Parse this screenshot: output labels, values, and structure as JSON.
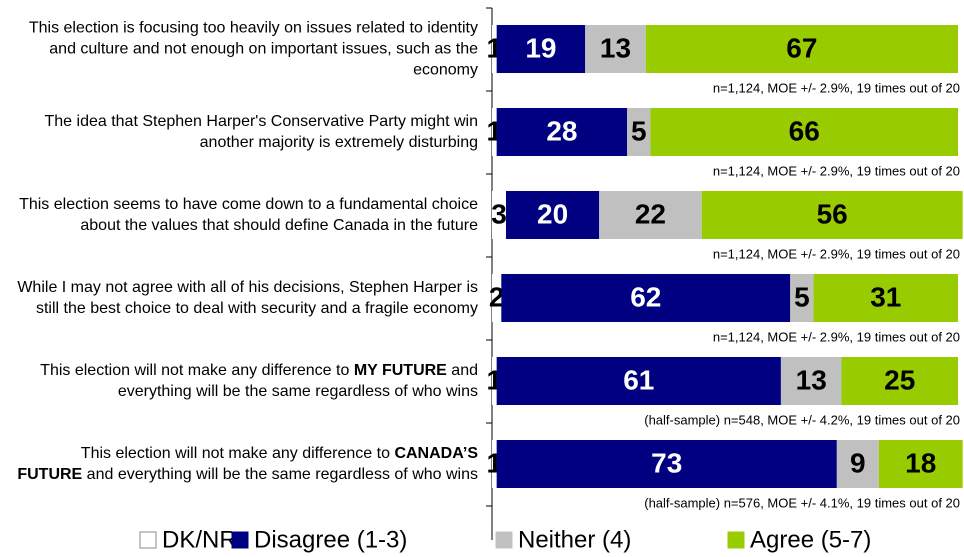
{
  "chart_data": {
    "type": "stacked-bar-horizontal",
    "categories": [
      [
        "This election is focusing too heavily on issues related to identity and culture and not enough on important issues, such as the economy"
      ],
      [
        "The idea that Stephen Harper's Conservative Party might win another majority is extremely disturbing"
      ],
      [
        "This election seems to have come down to a fundamental choice about the values that should define Canada in the future"
      ],
      [
        "While I may not agree with all of his decisions, Stephen Harper is still the best choice to deal with security and a fragile economy"
      ],
      [
        "This election will not make any difference to ",
        "MY FUTURE",
        " and everything will be the same regardless of who wins"
      ],
      [
        "This election will not make any difference to ",
        "CANADA’S FUTURE",
        " and everything will be the same regardless of who wins"
      ]
    ],
    "series": [
      {
        "name": "DK/NR",
        "color": "#ffffff",
        "values": [
          1,
          1,
          3,
          2,
          1,
          1
        ]
      },
      {
        "name": "Disagree (1-3)",
        "color": "#000080",
        "values": [
          19,
          28,
          20,
          62,
          61,
          73
        ]
      },
      {
        "name": "Neither (4)",
        "color": "#c0c0c0",
        "values": [
          13,
          5,
          22,
          5,
          13,
          9
        ]
      },
      {
        "name": "Agree (5-7)",
        "color": "#99cc00",
        "values": [
          67,
          66,
          56,
          31,
          25,
          18
        ]
      }
    ],
    "notes": [
      "n=1,124, MOE +/- 2.9%, 19 times out of 20",
      "n=1,124, MOE +/- 2.9%, 19 times out of 20",
      "n=1,124, MOE +/- 2.9%, 19 times out of 20",
      "n=1,124, MOE +/- 2.9%, 19 times out of 20",
      "(half-sample) n=548, MOE +/- 4.2%, 19 times out of 20",
      "(half-sample) n=576, MOE +/- 4.1%, 19 times out of 20"
    ],
    "xlim": [
      0,
      100
    ]
  }
}
